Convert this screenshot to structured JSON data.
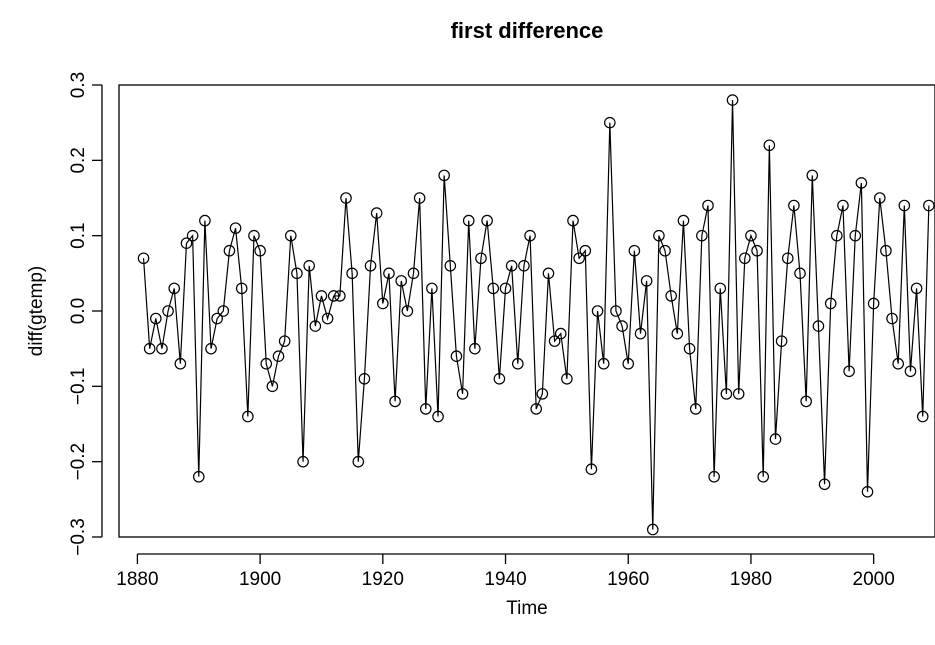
{
  "chart_data": {
    "type": "line",
    "title": "first difference",
    "xlabel": "Time",
    "ylabel": "diff(gtemp)",
    "xlim": [
      1877,
      2010
    ],
    "ylim": [
      -0.3,
      0.3
    ],
    "x_ticks": [
      1880,
      1900,
      1920,
      1940,
      1960,
      1980,
      2000
    ],
    "x_tick_labels": [
      "1880",
      "1900",
      "1920",
      "1940",
      "1960",
      "1980",
      "2000"
    ],
    "y_ticks": [
      -0.3,
      -0.2,
      -0.1,
      0.0,
      0.1,
      0.2,
      0.3
    ],
    "y_tick_labels": [
      "−0.3",
      "−0.2",
      "−0.1",
      "0.0",
      "0.1",
      "0.2",
      "0.3"
    ],
    "grid": false,
    "marker": "open-circle",
    "series": [
      {
        "x": [
          1881,
          1882,
          1883,
          1884,
          1885,
          1886,
          1887,
          1888,
          1889,
          1890,
          1891,
          1892,
          1893,
          1894,
          1895,
          1896,
          1897,
          1898,
          1899,
          1900,
          1901,
          1902,
          1903,
          1904,
          1905,
          1906,
          1907,
          1908,
          1909,
          1910,
          1911,
          1912,
          1913,
          1914,
          1915,
          1916,
          1917,
          1918,
          1919,
          1920,
          1921,
          1922,
          1923,
          1924,
          1925,
          1926,
          1927,
          1928,
          1929,
          1930,
          1931,
          1932,
          1933,
          1934,
          1935,
          1936,
          1937,
          1938,
          1939,
          1940,
          1941,
          1942,
          1943,
          1944,
          1945,
          1946,
          1947,
          1948,
          1949,
          1950,
          1951,
          1952,
          1953,
          1954,
          1955,
          1956,
          1957,
          1958,
          1959,
          1960,
          1961,
          1962,
          1963,
          1964,
          1965,
          1966,
          1967,
          1968,
          1969,
          1970,
          1971,
          1972,
          1973,
          1974,
          1975,
          1976,
          1977,
          1978,
          1979,
          1980,
          1981,
          1982,
          1983,
          1984,
          1985,
          1986,
          1987,
          1988,
          1989,
          1990,
          1991,
          1992,
          1993,
          1994,
          1995,
          1996,
          1997,
          1998,
          1999,
          2000,
          2001,
          2002,
          2003,
          2004,
          2005,
          2006,
          2007,
          2008,
          2009
        ],
        "values": [
          0.07,
          -0.05,
          -0.01,
          -0.05,
          0.0,
          0.03,
          -0.07,
          0.09,
          0.1,
          -0.22,
          0.12,
          -0.05,
          -0.01,
          0.0,
          0.08,
          0.11,
          0.03,
          -0.14,
          0.1,
          0.08,
          -0.07,
          -0.1,
          -0.06,
          -0.04,
          0.1,
          0.05,
          -0.2,
          0.06,
          -0.02,
          0.02,
          -0.01,
          0.02,
          0.02,
          0.15,
          0.05,
          -0.2,
          -0.09,
          0.06,
          0.13,
          0.01,
          0.05,
          -0.12,
          0.04,
          0.0,
          0.05,
          0.15,
          -0.13,
          0.03,
          -0.14,
          0.18,
          0.06,
          -0.06,
          -0.11,
          0.12,
          -0.05,
          0.07,
          0.12,
          0.03,
          -0.09,
          0.03,
          0.06,
          -0.07,
          0.06,
          0.1,
          -0.13,
          -0.11,
          0.05,
          -0.04,
          -0.03,
          -0.09,
          0.12,
          0.07,
          0.08,
          -0.21,
          0.0,
          -0.07,
          0.25,
          0.0,
          -0.02,
          -0.07,
          0.08,
          -0.03,
          0.04,
          -0.29,
          0.1,
          0.08,
          0.02,
          -0.03,
          0.12,
          -0.05,
          -0.13,
          0.1,
          0.14,
          -0.22,
          0.03,
          -0.11,
          0.28,
          -0.11,
          0.07,
          0.1,
          0.08,
          -0.22,
          0.22,
          -0.17,
          -0.04,
          0.07,
          0.14,
          0.05,
          -0.12,
          0.18,
          -0.02,
          -0.23,
          0.01,
          0.1,
          0.14,
          -0.08,
          0.1,
          0.17,
          -0.24,
          0.01,
          0.15,
          0.08,
          -0.01,
          -0.07,
          0.14,
          -0.08,
          0.03,
          -0.14,
          0.14
        ]
      }
    ]
  }
}
